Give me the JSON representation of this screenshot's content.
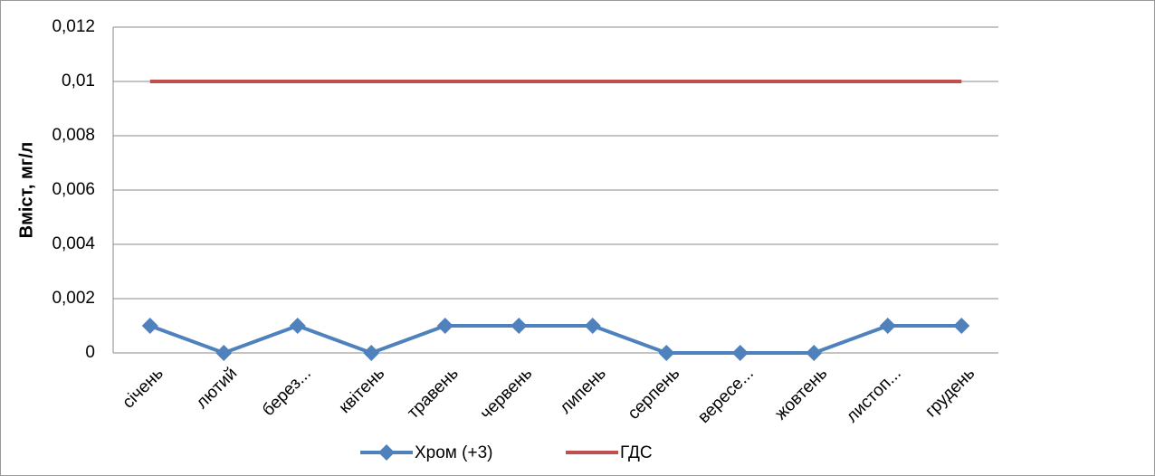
{
  "chart_data": {
    "type": "line",
    "y_label": "Вміст, мг/л",
    "categories": [
      "січень",
      "лютий",
      "берез...",
      "квітень",
      "травень",
      "червень",
      "липень",
      "серпень",
      "вересе...",
      "жовтень",
      "листоп...",
      "грудень"
    ],
    "series": [
      {
        "name": "Хром (+3)",
        "color": "#4f81bd",
        "marker": "diamond",
        "values": [
          0.001,
          0,
          0.001,
          0,
          0.001,
          0.001,
          0.001,
          0,
          0,
          0,
          0.001,
          0.001
        ]
      },
      {
        "name": "ГДС",
        "color": "#c0504d",
        "values": [
          0.01,
          0.01,
          0.01,
          0.01,
          0.01,
          0.01,
          0.01,
          0.01,
          0.01,
          0.01,
          0.01,
          0.01
        ]
      }
    ],
    "ylim": [
      0,
      0.012
    ],
    "yticks": [
      0,
      {
        "value": 0.002,
        "label": "0,002"
      },
      {
        "value": 0.004,
        "label": "0,004"
      },
      {
        "value": 0.006,
        "label": "0,006"
      },
      {
        "value": 0.008,
        "label": "0,008"
      },
      {
        "value": 0.01,
        "label": "0,01"
      },
      {
        "value": 0.012,
        "label": "0,012"
      }
    ],
    "grid": true,
    "legend": "bottom"
  }
}
